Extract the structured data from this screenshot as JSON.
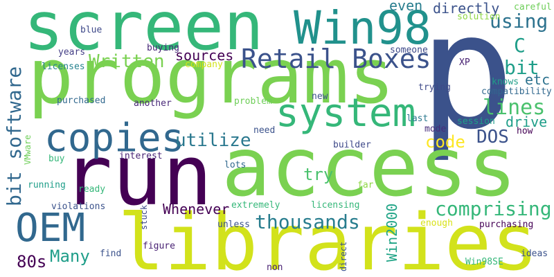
{
  "words": [
    {
      "text": "screen",
      "color": "#35b779"
    },
    {
      "text": "p",
      "color": "#3b528b"
    },
    {
      "text": "programs",
      "color": "#7ad151"
    },
    {
      "text": "access",
      "color": "#7ad151"
    },
    {
      "text": "run",
      "color": "#440154"
    },
    {
      "text": "libraries",
      "color": "#d2e21b"
    },
    {
      "text": "Win98",
      "color": "#21918c"
    },
    {
      "text": "system",
      "color": "#35b779"
    },
    {
      "text": "copies",
      "color": "#31688e"
    },
    {
      "text": "Retail Boxes",
      "color": "#3b528b"
    },
    {
      "text": "OEM",
      "color": "#31688e"
    },
    {
      "text": "bit software",
      "color": "#31688e"
    },
    {
      "text": "Written",
      "color": "#7ad151"
    },
    {
      "text": "comprising",
      "color": "#35b779"
    },
    {
      "text": "thousands",
      "color": "#287d8e"
    },
    {
      "text": "utilize",
      "color": "#2a788e"
    },
    {
      "text": "lines",
      "color": "#4ac16d"
    },
    {
      "text": "bit",
      "color": "#1f9e89"
    },
    {
      "text": "using",
      "color": "#2c728e"
    },
    {
      "text": "directly",
      "color": "#3b528b"
    },
    {
      "text": "even",
      "color": "#287d8e"
    },
    {
      "text": "sources",
      "color": "#440154"
    },
    {
      "text": "C",
      "color": "#1f9e89"
    },
    {
      "text": "etc",
      "color": "#2c728e"
    },
    {
      "text": "drive",
      "color": "#1f9e89"
    },
    {
      "text": "DOS",
      "color": "#3b528b"
    },
    {
      "text": "code",
      "color": "#fde725"
    },
    {
      "text": "Whenever",
      "color": "#440154"
    },
    {
      "text": "Many",
      "color": "#1f9e89"
    },
    {
      "text": "80s",
      "color": "#440154"
    },
    {
      "text": "try",
      "color": "#4ac16d"
    },
    {
      "text": "Win2000",
      "color": "#20a486"
    },
    {
      "text": "careful",
      "color": "#6ece58"
    },
    {
      "text": "solution",
      "color": "#8fd744"
    },
    {
      "text": "blue",
      "color": "#3e4989"
    },
    {
      "text": "buying",
      "color": "#462777"
    },
    {
      "text": "XP",
      "color": "#482173"
    },
    {
      "text": "someone",
      "color": "#3e4989"
    },
    {
      "text": "company",
      "color": "#d2e21b"
    },
    {
      "text": "years",
      "color": "#433e85"
    },
    {
      "text": "licenses",
      "color": "#26828e"
    },
    {
      "text": "knows",
      "color": "#1f9e89"
    },
    {
      "text": "compatibility",
      "color": "#31688e"
    },
    {
      "text": "trying",
      "color": "#3e4989"
    },
    {
      "text": "purchased",
      "color": "#31688e"
    },
    {
      "text": "another",
      "color": "#482878"
    },
    {
      "text": "problem",
      "color": "#6ece58"
    },
    {
      "text": "new",
      "color": "#3b528b"
    },
    {
      "text": "last",
      "color": "#2a788e"
    },
    {
      "text": "session",
      "color": "#1f9e89"
    },
    {
      "text": "mode",
      "color": "#472d7b"
    },
    {
      "text": "how",
      "color": "#440154"
    },
    {
      "text": "need",
      "color": "#3b528b"
    },
    {
      "text": "builder",
      "color": "#3e4989"
    },
    {
      "text": "interest",
      "color": "#482475"
    },
    {
      "text": "buy",
      "color": "#35b779"
    },
    {
      "text": "VMware",
      "color": "#6ece58"
    },
    {
      "text": "lots",
      "color": "#31688e"
    },
    {
      "text": "running",
      "color": "#1f9e89"
    },
    {
      "text": "ready",
      "color": "#35b779"
    },
    {
      "text": "far",
      "color": "#8fd744"
    },
    {
      "text": "violations",
      "color": "#3b528b"
    },
    {
      "text": "extremely",
      "color": "#35b779"
    },
    {
      "text": "licensing",
      "color": "#35b779"
    },
    {
      "text": "stuck",
      "color": "#3e4989"
    },
    {
      "text": "unless",
      "color": "#3b528b"
    },
    {
      "text": "enough",
      "color": "#d8e219"
    },
    {
      "text": "purchasing",
      "color": "#440154"
    },
    {
      "text": "find",
      "color": "#3b528b"
    },
    {
      "text": "figure",
      "color": "#482173"
    },
    {
      "text": "direct",
      "color": "#3b528b"
    },
    {
      "text": "non",
      "color": "#482173"
    },
    {
      "text": "Win98SE",
      "color": "#35b779"
    },
    {
      "text": "ideas",
      "color": "#3b528b"
    }
  ]
}
